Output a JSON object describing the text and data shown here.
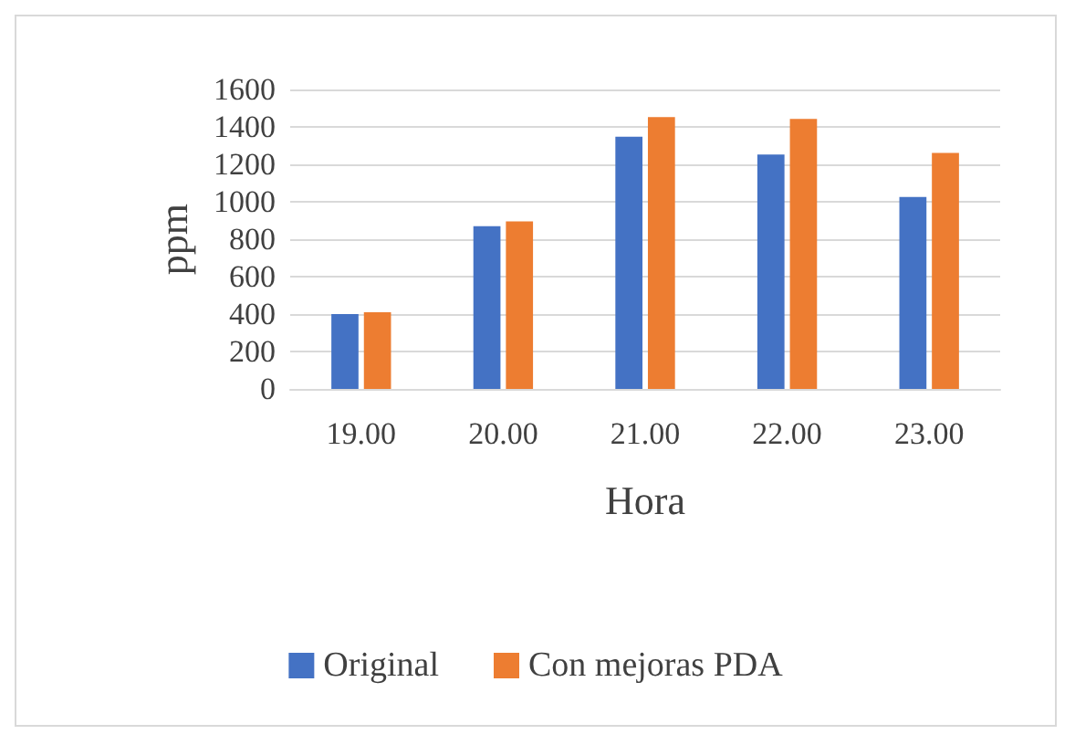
{
  "chart_data": {
    "type": "bar",
    "xlabel": "Hora",
    "ylabel": "ppm",
    "categories": [
      "19.00",
      "20.00",
      "21.00",
      "22.00",
      "23.00"
    ],
    "series": [
      {
        "name": "Original",
        "color": "#4472c4",
        "values": [
          400,
          870,
          1348,
          1252,
          1026
        ]
      },
      {
        "name": "Con mejoras PDA",
        "color": "#ed7d31",
        "values": [
          410,
          895,
          1452,
          1443,
          1261
        ]
      }
    ],
    "ylim": [
      0,
      1600
    ],
    "yticks": [
      0,
      200,
      400,
      600,
      800,
      1000,
      1200,
      1400,
      1600
    ],
    "grid": "y",
    "legend": "bottom"
  }
}
